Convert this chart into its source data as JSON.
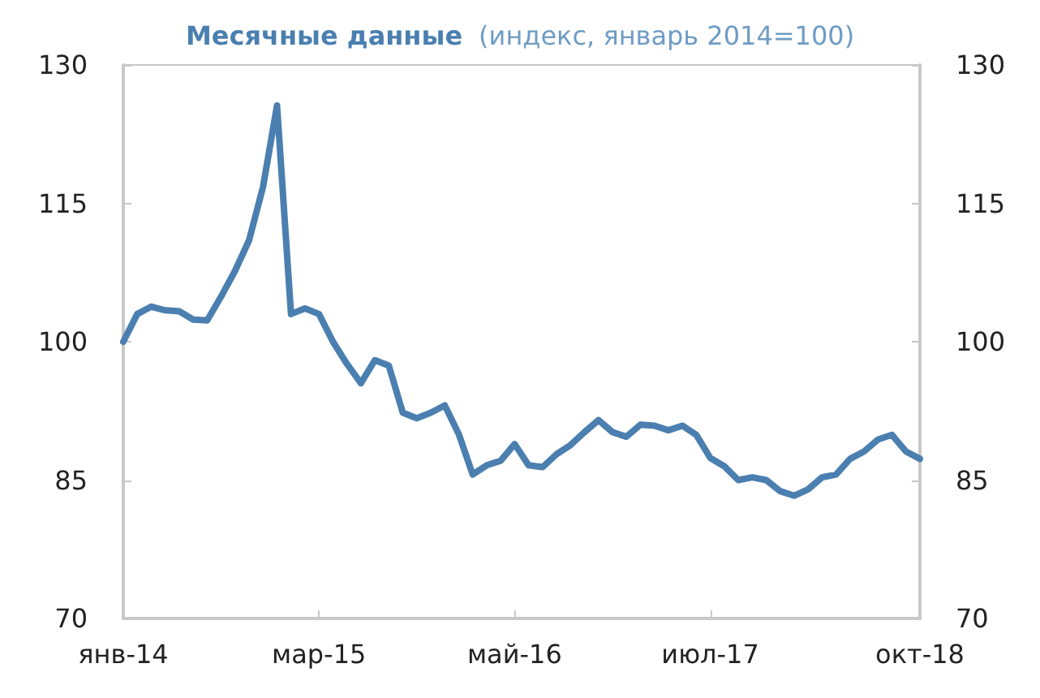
{
  "chart_data": {
    "type": "line",
    "title": "Месячные данные",
    "subtitle": "(индекс, январь 2014=100)",
    "categories": [
      "янв-14",
      null,
      null,
      null,
      null,
      null,
      null,
      null,
      null,
      null,
      null,
      null,
      null,
      null,
      "мар-15",
      null,
      null,
      null,
      null,
      null,
      null,
      null,
      null,
      null,
      null,
      null,
      null,
      null,
      "май-16",
      null,
      null,
      null,
      null,
      null,
      null,
      null,
      null,
      null,
      null,
      null,
      null,
      null,
      "июл-17",
      null,
      null,
      null,
      null,
      null,
      null,
      null,
      null,
      null,
      null,
      null,
      null,
      null,
      null,
      "окт-18"
    ],
    "series": [
      {
        "color": "#4a7fb0",
        "values": [
          100,
          103,
          103.8,
          103.4,
          103.3,
          102.4,
          102.3,
          104.9,
          107.7,
          111,
          116.8,
          125.6,
          103,
          103.6,
          103,
          100,
          97.6,
          95.5,
          98,
          97.4,
          92.3,
          91.7,
          92.3,
          93.1,
          90,
          85.6,
          86.6,
          87.1,
          88.9,
          86.6,
          86.4,
          87.8,
          88.8,
          90.2,
          91.5,
          90.2,
          89.7,
          91,
          90.9,
          90.4,
          90.9,
          89.9,
          87.4,
          86.5,
          85,
          85.3,
          85,
          83.8,
          83.3,
          84,
          85.3,
          85.6,
          87.3,
          88.1,
          89.4,
          89.9,
          88.1,
          87.3
        ]
      }
    ],
    "ylim": [
      70,
      130
    ],
    "yticks": [
      70,
      85,
      100,
      115,
      130
    ],
    "y2lim": [
      70,
      130
    ],
    "y2ticks": [
      70,
      85,
      100,
      115,
      130
    ],
    "grid": false,
    "marker": "none",
    "line_style": "solid"
  }
}
